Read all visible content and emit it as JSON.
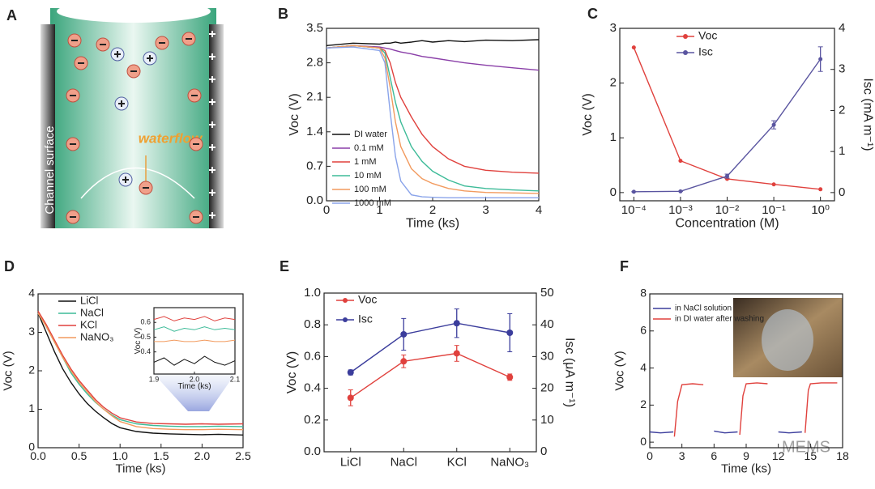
{
  "panel_a": {
    "label": "A",
    "wall_label": "Channel surface",
    "flow_label": "waterflow"
  },
  "watermark": "MEMS",
  "chart_data": [
    {
      "type": "line",
      "label": "B",
      "xlabel": "Time (ks)",
      "ylabel": "Voc (V)",
      "xlim": [
        0,
        4
      ],
      "xticks": [
        0,
        1,
        2,
        3,
        4
      ],
      "ylim": [
        0,
        3.5
      ],
      "yticks": [
        {
          "value": 0,
          "label": "0.0"
        },
        0.7,
        1.4,
        2.1,
        2.8,
        3.5
      ],
      "x": [
        0,
        0.5,
        1,
        1.1,
        1.2,
        1.3,
        1.4,
        1.6,
        1.8,
        2,
        2.3,
        2.6,
        3,
        3.5,
        4
      ],
      "series": [
        {
          "name": "DI water",
          "color": "#111111",
          "values": [
            3.15,
            3.2,
            3.18,
            3.2,
            3.2,
            3.22,
            3.2,
            3.22,
            3.25,
            3.22,
            3.25,
            3.23,
            3.26,
            3.25,
            3.27
          ]
        },
        {
          "name": "0.1 mM",
          "color": "#8a3fa8",
          "values": [
            3.1,
            3.15,
            3.12,
            3.1,
            3.08,
            3.05,
            3.02,
            2.98,
            2.93,
            2.9,
            2.85,
            2.8,
            2.75,
            2.7,
            2.65
          ]
        },
        {
          "name": "1 mM",
          "color": "#e0413d",
          "values": [
            3.1,
            3.15,
            3.1,
            3.05,
            2.8,
            2.4,
            2.1,
            1.7,
            1.35,
            1.1,
            0.85,
            0.7,
            0.62,
            0.58,
            0.56
          ]
        },
        {
          "name": "10 mM",
          "color": "#3dbb98",
          "values": [
            3.1,
            3.15,
            3.1,
            3.0,
            2.5,
            2.0,
            1.6,
            1.1,
            0.8,
            0.6,
            0.42,
            0.3,
            0.25,
            0.22,
            0.2
          ]
        },
        {
          "name": "100 mM",
          "color": "#f29a5e",
          "values": [
            3.1,
            3.15,
            3.1,
            2.9,
            2.3,
            1.6,
            1.1,
            0.65,
            0.45,
            0.35,
            0.25,
            0.2,
            0.17,
            0.16,
            0.15
          ]
        },
        {
          "name": "1000 mM",
          "color": "#8aa4ea",
          "values": [
            3.1,
            3.12,
            3.05,
            2.8,
            1.8,
            0.9,
            0.4,
            0.12,
            0.08,
            0.07,
            0.06,
            0.06,
            0.06,
            0.06,
            0.06
          ]
        }
      ]
    },
    {
      "type": "line",
      "label": "C",
      "xlabel": "Concentration (M)",
      "ylabel": "Voc (V)",
      "y2label": "Isc (mA m⁻¹)",
      "xscale": "log",
      "xlim": [
        5e-05,
        2
      ],
      "xticks": [
        {
          "value": 0.0001,
          "label": "10⁻⁴"
        },
        {
          "value": 0.001,
          "label": "10⁻³"
        },
        {
          "value": 0.01,
          "label": "10⁻²"
        },
        {
          "value": 0.1,
          "label": "10⁻¹"
        },
        {
          "value": 1,
          "label": "10⁰"
        }
      ],
      "ylim": [
        -0.15,
        3
      ],
      "yticks": [
        0,
        1,
        2,
        3
      ],
      "y2lim": [
        -0.2,
        4
      ],
      "y2ticks": [
        0,
        1,
        2,
        3,
        4
      ],
      "markers": true,
      "x": [
        0.0001,
        0.001,
        0.01,
        0.1,
        1
      ],
      "series": [
        {
          "name": "Voc",
          "color": "#e0413d",
          "values": [
            2.65,
            0.58,
            0.25,
            0.15,
            0.06
          ]
        },
        {
          "name": "Isc",
          "color": "#5a55a0",
          "axis": "y2",
          "values": [
            0.02,
            0.03,
            0.4,
            1.65,
            3.25
          ],
          "errors": [
            0,
            0,
            0.05,
            0.1,
            0.3
          ]
        }
      ]
    },
    {
      "type": "line",
      "label": "D",
      "xlabel": "Time (ks)",
      "ylabel": "Voc (V)",
      "xlim": [
        0,
        2.5
      ],
      "xticks": [
        {
          "value": 0,
          "label": "0.0"
        },
        0.5,
        {
          "value": 1,
          "label": "1.0"
        },
        1.5,
        {
          "value": 2,
          "label": "2.0"
        },
        2.5
      ],
      "ylim": [
        0,
        4
      ],
      "yticks": [
        0,
        1,
        2,
        3,
        4
      ],
      "x": [
        0,
        0.1,
        0.2,
        0.3,
        0.4,
        0.5,
        0.6,
        0.7,
        0.8,
        0.9,
        1.0,
        1.2,
        1.4,
        1.6,
        1.8,
        2.0,
        2.2,
        2.5
      ],
      "series": [
        {
          "name": "LiCl",
          "color": "#111111",
          "values": [
            3.5,
            3.0,
            2.5,
            2.05,
            1.7,
            1.4,
            1.15,
            0.95,
            0.78,
            0.63,
            0.52,
            0.42,
            0.38,
            0.36,
            0.35,
            0.34,
            0.35,
            0.33
          ]
        },
        {
          "name": "NaCl",
          "color": "#3dbb98",
          "values": [
            3.5,
            3.15,
            2.75,
            2.35,
            1.95,
            1.65,
            1.4,
            1.18,
            1.0,
            0.85,
            0.73,
            0.62,
            0.58,
            0.56,
            0.55,
            0.55,
            0.56,
            0.55
          ]
        },
        {
          "name": "KCl",
          "color": "#e0413d",
          "values": [
            3.55,
            3.2,
            2.8,
            2.4,
            2.05,
            1.75,
            1.5,
            1.25,
            1.05,
            0.9,
            0.78,
            0.67,
            0.63,
            0.62,
            0.61,
            0.62,
            0.61,
            0.62
          ]
        },
        {
          "name": "NaNO₃",
          "color": "#f29a5e",
          "values": [
            3.5,
            3.15,
            2.75,
            2.35,
            2.0,
            1.7,
            1.45,
            1.2,
            1.0,
            0.83,
            0.68,
            0.55,
            0.5,
            0.48,
            0.47,
            0.47,
            0.48,
            0.47
          ]
        }
      ]
    },
    {
      "type": "line",
      "xlabel": "Time (ks)",
      "ylabel": "Voc (V)",
      "xlim": [
        1.9,
        2.1
      ],
      "xticks": [
        1.9,
        {
          "value": 2,
          "label": "2.0"
        },
        2.1
      ],
      "ylim": [
        0.25,
        0.7
      ],
      "yticks": [
        0.4,
        0.5,
        0.6
      ],
      "x": [
        1.9,
        1.925,
        1.95,
        1.975,
        2.0,
        2.025,
        2.05,
        2.075,
        2.1
      ],
      "series": [
        {
          "color": "#111111",
          "values": [
            0.33,
            0.36,
            0.31,
            0.35,
            0.32,
            0.37,
            0.33,
            0.31,
            0.34
          ]
        },
        {
          "color": "#3dbb98",
          "values": [
            0.55,
            0.57,
            0.54,
            0.56,
            0.55,
            0.57,
            0.55,
            0.56,
            0.55
          ]
        },
        {
          "color": "#e0413d",
          "values": [
            0.62,
            0.64,
            0.61,
            0.63,
            0.62,
            0.64,
            0.61,
            0.63,
            0.62
          ]
        },
        {
          "color": "#f29a5e",
          "values": [
            0.47,
            0.47,
            0.48,
            0.47,
            0.47,
            0.48,
            0.47,
            0.47,
            0.48
          ]
        }
      ]
    },
    {
      "type": "line",
      "label": "E",
      "ylabel": "Voc (V)",
      "y2label": "Isc (μA m⁻¹)",
      "categories": [
        "LiCl",
        "NaCl",
        "KCl",
        "NaNO₃"
      ],
      "ylim": [
        0,
        1
      ],
      "yticks": [
        {
          "value": 0,
          "label": "0.0"
        },
        0.2,
        0.4,
        0.6,
        0.8,
        {
          "value": 1,
          "label": "1.0"
        }
      ],
      "y2lim": [
        0,
        50
      ],
      "y2ticks": [
        0,
        10,
        20,
        30,
        40,
        50
      ],
      "markers": true,
      "series": [
        {
          "name": "Voc",
          "color": "#e0413d",
          "values": [
            0.34,
            0.57,
            0.62,
            0.47
          ],
          "errors": [
            0.05,
            0.04,
            0.05,
            0.02
          ]
        },
        {
          "name": "Isc",
          "color": "#3b3d9c",
          "axis": "y2",
          "values": [
            25,
            37,
            40.5,
            37.5
          ],
          "errors": [
            0.8,
            5,
            4.5,
            6
          ]
        }
      ]
    },
    {
      "type": "line",
      "label": "F",
      "xlabel": "Time (ks)",
      "ylabel": "Voc (V)",
      "xlim": [
        0,
        18
      ],
      "xticks": [
        0,
        3,
        6,
        9,
        12,
        15,
        18
      ],
      "ylim": [
        -0.3,
        8
      ],
      "yticks": [
        0,
        2,
        4,
        6,
        8
      ],
      "series": [
        {
          "name": "in NaCl solution",
          "color": "#3b3d9c",
          "x": [
            0,
            1,
            2.2,
            4,
            6,
            7,
            8.2,
            10,
            12,
            13,
            14.2
          ],
          "values": [
            0.55,
            0.5,
            0.55,
            null,
            0.6,
            0.5,
            0.55,
            null,
            0.55,
            0.5,
            0.55
          ]
        },
        {
          "name": "in DI water after washing",
          "color": "#e0413d",
          "x": [
            2.3,
            2.6,
            3,
            4,
            5,
            6,
            8.4,
            8.7,
            9,
            10,
            11,
            12,
            14.5,
            14.8,
            15,
            16,
            17,
            17.5
          ],
          "values": [
            0.3,
            2.2,
            3.1,
            3.15,
            3.1,
            null,
            0.4,
            2.5,
            3.15,
            3.2,
            3.15,
            null,
            0.5,
            2.8,
            3.15,
            3.2,
            3.2,
            3.2
          ]
        }
      ]
    }
  ]
}
